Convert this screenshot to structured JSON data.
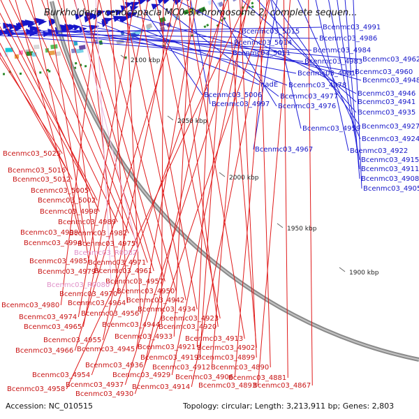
{
  "title": "Burkholderia cenocepacia MC0-3 chromosome 2, complete sequen...",
  "footer": {
    "accession": "Accession: NC_010515",
    "summary": "Topology: circular; Length: 3,213,911 bp; Genes: 2,803"
  },
  "colors": {
    "forward": "#1515c8",
    "reverse": "#d01818",
    "rna": "#e08fc8",
    "backbone": "#8a8a8a"
  },
  "tick_labels": [
    "2100 kbp",
    "2050 kbp",
    "2000 kbp",
    "1950 kbp",
    "1900 kbp"
  ],
  "forward_labels": [
    "Bcenmc03_5015",
    "Bcenmc03_5014",
    "Bcenmc03_5011",
    "Bcenmc03_4991",
    "Bcenmc03_4986",
    "Bcenmc03_4984",
    "Bcenmc03_4983",
    "Bcenmc03_4962",
    "Bcenmc03_4981",
    "Bcenmc03_4960",
    "nadE",
    "Bcenmc03_4978",
    "Bcenmc03_4948",
    "Bcenmc03_5006",
    "Bcenmc03_4977",
    "Bcenmc03_4946",
    "Bcenmc03_4997",
    "Bcenmc03_4976",
    "Bcenmc03_4941",
    "Bcenmc03_4935",
    "Bcenmc03_4927",
    "Bcenmc03_4959",
    "Bcenmc03_4924",
    "Bcenmc03_4967",
    "Bcenmc03_4922",
    "Bcenmc03_4915",
    "Bcenmc03_4911",
    "Bcenmc03_4908",
    "Bcenmc03_4905"
  ],
  "reverse_labels": [
    "Bcenmc03_5025",
    "Bcenmc03_5016",
    "Bcenmc03_5012",
    "Bcenmc03_5005",
    "Bcenmc03_5002",
    "Bcenmc03_4998",
    "Bcenmc03_4989",
    "Bcenmc03_4999",
    "Bcenmc03_4982",
    "Bcenmc03_4994",
    "Bcenmc03_4975",
    "Bcenmc03_4985",
    "Bcenmc03_4971",
    "Bcenmc03_4979",
    "Bcenmc03_4961",
    "Bcenmc03_4957",
    "Bcenmc03_4970",
    "Bcenmc03_4950",
    "Bcenmc03_4980",
    "Bcenmc03_4964",
    "Bcenmc03_4942",
    "Bcenmc03_4956",
    "Bcenmc03_4934",
    "Bcenmc03_4974",
    "Bcenmc03_4923",
    "Bcenmc03_4965",
    "Bcenmc03_4944",
    "Bcenmc03_4920",
    "Bcenmc03_4913",
    "Bcenmc03_4955",
    "Bcenmc03_4933",
    "Bcenmc03_4966",
    "Bcenmc03_4945",
    "Bcenmc03_4921",
    "Bcenmc03_4902",
    "Bcenmc03_4919",
    "Bcenmc03_4899",
    "Bcenmc03_4936",
    "Bcenmc03_4912",
    "Bcenmc03_4890",
    "Bcenmc03_4954",
    "Bcenmc03_4929",
    "Bcenmc03_4906",
    "Bcenmc03_4881",
    "Bcenmc03_4937",
    "Bcenmc03_4914",
    "Bcenmc03_4893",
    "Bcenmc03_4867",
    "Bcenmc03_4958",
    "Bcenmc03_4930"
  ],
  "rna_labels": [
    "Bcenmc03_R0082",
    "Bcenmc03_R0080"
  ]
}
